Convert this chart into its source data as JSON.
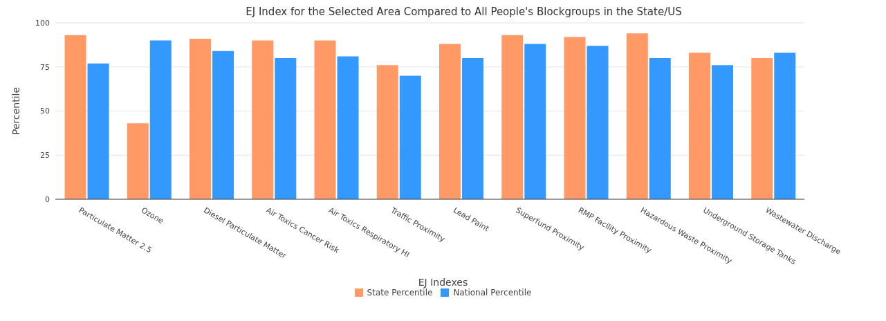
{
  "chart_data": {
    "type": "bar",
    "title": "EJ Index for the Selected Area Compared to All People's Blockgroups in the State/US",
    "xlabel": null,
    "ylabel": "Percentile",
    "legend_title": "EJ Indexes",
    "categories": [
      "Particulate Matter 2.5",
      "Ozone",
      "Diesel Particulate Matter",
      "Air Toxics Cancer Risk",
      "Air Toxics Respiratory HI",
      "Traffic Proximity",
      "Lead Paint",
      "Superfund Proximity",
      "RMP Facility Proximity",
      "Hazardous Waste Proximity",
      "Underground Storage Tanks",
      "Wastewater Discharge"
    ],
    "series": [
      {
        "name": "State Percentile",
        "color": "#ff9966",
        "values": [
          93,
          43,
          91,
          90,
          90,
          76,
          88,
          93,
          92,
          94,
          83,
          80
        ]
      },
      {
        "name": "National Percentile",
        "color": "#3399ff",
        "values": [
          77,
          90,
          84,
          80,
          81,
          70,
          80,
          88,
          87,
          80,
          76,
          83
        ]
      }
    ],
    "ylim": [
      0,
      100
    ],
    "yticks": [
      0,
      25,
      50,
      75,
      100
    ],
    "grid": "y",
    "legend": "bottom"
  }
}
